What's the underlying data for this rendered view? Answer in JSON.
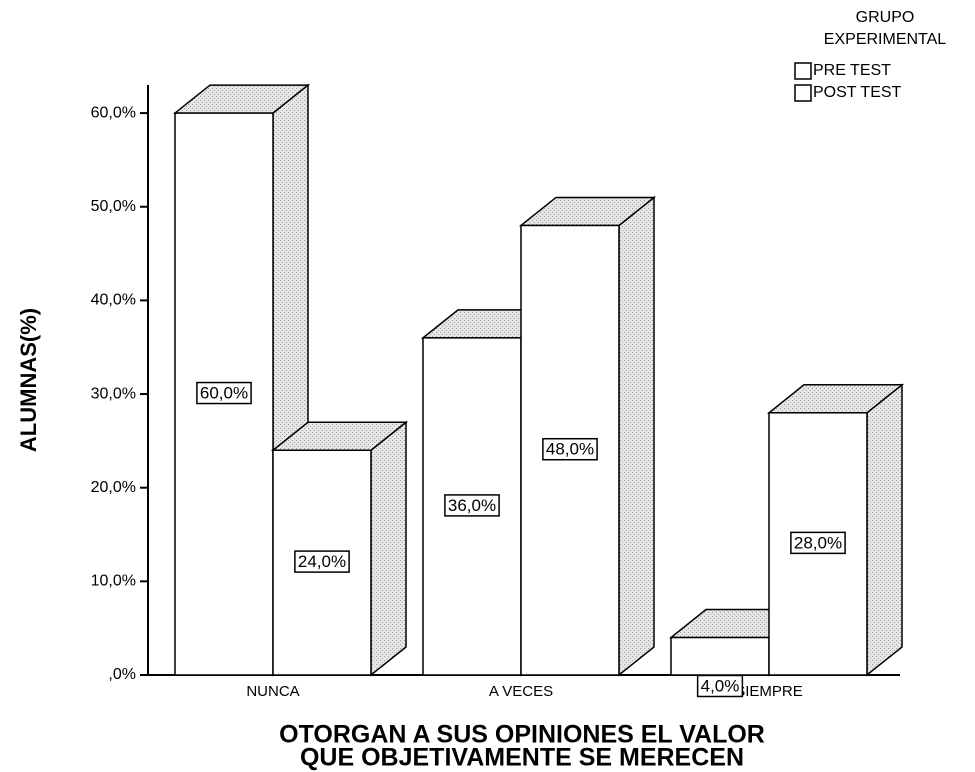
{
  "chart_data": {
    "type": "bar3d",
    "ylabel": "ALUMNAS(%)",
    "xlabel": [
      "OTORGAN A SUS OPINIONES EL VALOR",
      "QUE OBJETIVAMENTE SE MERECEN"
    ],
    "legend_title": [
      "GRUPO",
      "EXPERIMENTAL"
    ],
    "categories": [
      "NUNCA",
      "A VECES",
      "SIEMPRE"
    ],
    "series": [
      {
        "name": "PRE TEST",
        "color": "#ffffff",
        "values": [
          60,
          36,
          4
        ],
        "value_labels": [
          "60,0%",
          "36,0%",
          "4,0%"
        ]
      },
      {
        "name": "POST TEST",
        "color": "#ffffff",
        "values": [
          24,
          48,
          28
        ],
        "value_labels": [
          "24,0%",
          "48,0%",
          "28,0%"
        ]
      }
    ],
    "ylim": [
      0,
      63
    ],
    "yticks": [
      {
        "value": 0,
        "label": ",0%"
      },
      {
        "value": 10,
        "label": "10,0%"
      },
      {
        "value": 20,
        "label": "20,0%"
      },
      {
        "value": 30,
        "label": "30,0%"
      },
      {
        "value": 40,
        "label": "40,0%"
      },
      {
        "value": 50,
        "label": "50,0%"
      },
      {
        "value": 60,
        "label": "60,0%"
      }
    ],
    "legend_position": "top-right"
  }
}
